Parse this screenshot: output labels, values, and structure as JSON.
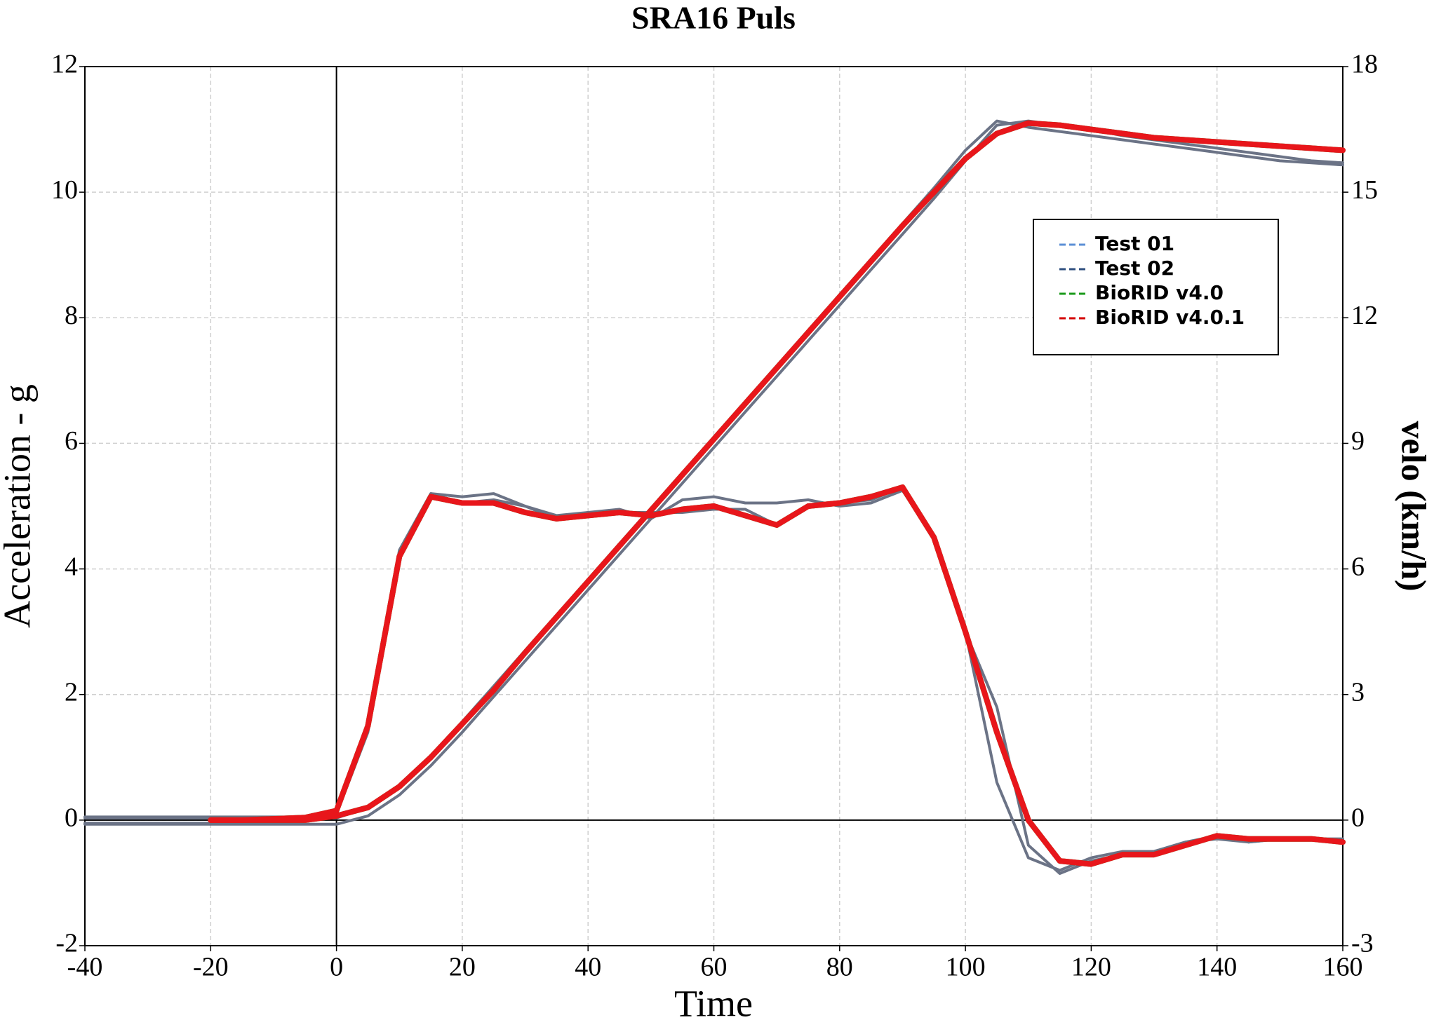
{
  "chart_data": {
    "type": "line",
    "title": "SRA16 Puls",
    "x_label": "Time",
    "y_label": "Acceleration - g",
    "y2_label": "velo (km/h)",
    "x": [
      -40,
      -35,
      -30,
      -25,
      -20,
      -15,
      -10,
      -5,
      0,
      5,
      10,
      15,
      20,
      25,
      30,
      35,
      40,
      45,
      50,
      55,
      60,
      65,
      70,
      75,
      80,
      85,
      90,
      95,
      100,
      105,
      110,
      115,
      120,
      125,
      130,
      135,
      140,
      145,
      150,
      155,
      160
    ],
    "xlim": [
      -40,
      160
    ],
    "xticks": [
      -40,
      -20,
      0,
      20,
      40,
      60,
      80,
      100,
      120,
      140,
      160
    ],
    "ylim": [
      -2,
      12
    ],
    "yticks": [
      -2,
      0,
      2,
      4,
      6,
      8,
      10,
      12
    ],
    "y2lim": [
      -3,
      18
    ],
    "y2ticks": [
      -3,
      0,
      3,
      6,
      9,
      12,
      15,
      18
    ],
    "grid": true,
    "zero_lines": true,
    "legend_position": "upper right",
    "series": [
      {
        "name": "Test 01",
        "color": "#5b8fd6",
        "line_color": "#6b7386",
        "values": [
          -0.05,
          -0.05,
          -0.05,
          -0.05,
          -0.05,
          -0.05,
          -0.05,
          0,
          0.1,
          1.4,
          4.2,
          5.2,
          5.15,
          5.2,
          5.0,
          4.8,
          4.9,
          4.95,
          4.8,
          5.1,
          5.15,
          5.05,
          5.05,
          5.1,
          5.0,
          5.05,
          5.25,
          4.5,
          3.0,
          0.6,
          -0.6,
          -0.8,
          -0.6,
          -0.5,
          -0.5,
          -0.35,
          -0.25,
          -0.35,
          -0.3,
          -0.3,
          -0.3
        ],
        "velocity": [
          -0.1,
          -0.1,
          -0.1,
          -0.1,
          -0.1,
          -0.1,
          -0.1,
          -0.1,
          -0.1,
          0.1,
          0.6,
          1.3,
          2.1,
          2.95,
          3.8,
          4.65,
          5.5,
          6.35,
          7.2,
          8.05,
          8.9,
          9.75,
          10.6,
          11.45,
          12.3,
          13.15,
          14.0,
          14.85,
          15.75,
          16.6,
          16.7,
          16.6,
          16.5,
          16.35,
          16.25,
          16.15,
          16.05,
          15.95,
          15.85,
          15.75,
          15.7
        ]
      },
      {
        "name": "Test 02",
        "color": "#2f4f7f",
        "line_color": "#6b7386",
        "values": [
          0.05,
          0.05,
          0.05,
          0.05,
          0.05,
          0.05,
          0.05,
          0.05,
          0.1,
          1.5,
          4.3,
          5.2,
          5.05,
          5.1,
          5.0,
          4.85,
          4.9,
          4.9,
          4.9,
          4.9,
          4.95,
          4.95,
          4.7,
          5.0,
          5.05,
          5.1,
          5.3,
          4.5,
          3.0,
          1.8,
          -0.4,
          -0.85,
          -0.65,
          -0.55,
          -0.5,
          -0.35,
          -0.3,
          -0.35,
          -0.3,
          -0.3,
          -0.3
        ],
        "velocity": [
          0.05,
          0.05,
          0.05,
          0.05,
          0.05,
          0.05,
          0.05,
          0.05,
          0.05,
          0.3,
          0.8,
          1.5,
          2.35,
          3.2,
          4.05,
          4.9,
          5.75,
          6.6,
          7.45,
          8.3,
          9.15,
          10.0,
          10.85,
          11.7,
          12.55,
          13.4,
          14.25,
          15.1,
          16.0,
          16.7,
          16.55,
          16.45,
          16.35,
          16.25,
          16.15,
          16.05,
          15.95,
          15.85,
          15.75,
          15.7,
          15.65
        ]
      },
      {
        "name": "BioRID v4.0",
        "color": "#1a9a1a",
        "line_color": "#1a9a1a",
        "values": [
          null,
          null,
          null,
          null,
          0,
          0,
          0.02,
          0.04,
          0.15,
          1.5,
          4.2,
          5.15,
          5.05,
          5.05,
          4.9,
          4.8,
          4.85,
          4.9,
          4.85,
          4.95,
          5.0,
          4.85,
          4.7,
          5.0,
          5.05,
          5.15,
          5.3,
          4.5,
          3.0,
          1.4,
          0.0,
          -0.65,
          -0.7,
          -0.55,
          -0.55,
          -0.4,
          -0.25,
          -0.3,
          -0.3,
          -0.3,
          -0.35
        ],
        "velocity": [
          null,
          null,
          null,
          null,
          0,
          0,
          0,
          0,
          0.1,
          0.3,
          0.8,
          1.5,
          2.3,
          3.1,
          4.0,
          4.85,
          5.7,
          6.55,
          7.4,
          8.25,
          9.1,
          9.95,
          10.8,
          11.65,
          12.5,
          13.35,
          14.2,
          15.0,
          15.8,
          16.4,
          16.65,
          16.6,
          16.5,
          16.4,
          16.3,
          16.25,
          16.2,
          16.15,
          16.1,
          16.05,
          16.0
        ]
      },
      {
        "name": "BioRID v4.0.1",
        "color": "#d40000",
        "line_color": "#e8161b",
        "values": [
          null,
          null,
          null,
          null,
          0,
          0,
          0.02,
          0.04,
          0.15,
          1.5,
          4.2,
          5.15,
          5.05,
          5.05,
          4.9,
          4.8,
          4.85,
          4.9,
          4.85,
          4.95,
          5.0,
          4.85,
          4.7,
          5.0,
          5.05,
          5.15,
          5.3,
          4.5,
          3.0,
          1.4,
          0.0,
          -0.65,
          -0.7,
          -0.55,
          -0.55,
          -0.4,
          -0.25,
          -0.3,
          -0.3,
          -0.3,
          -0.35
        ],
        "velocity": [
          null,
          null,
          null,
          null,
          0,
          0,
          0,
          0,
          0.1,
          0.3,
          0.8,
          1.5,
          2.3,
          3.1,
          4.0,
          4.85,
          5.7,
          6.55,
          7.4,
          8.25,
          9.1,
          9.95,
          10.8,
          11.65,
          12.5,
          13.35,
          14.2,
          15.0,
          15.8,
          16.4,
          16.65,
          16.6,
          16.5,
          16.4,
          16.3,
          16.25,
          16.2,
          16.15,
          16.1,
          16.05,
          16.0
        ]
      }
    ]
  }
}
